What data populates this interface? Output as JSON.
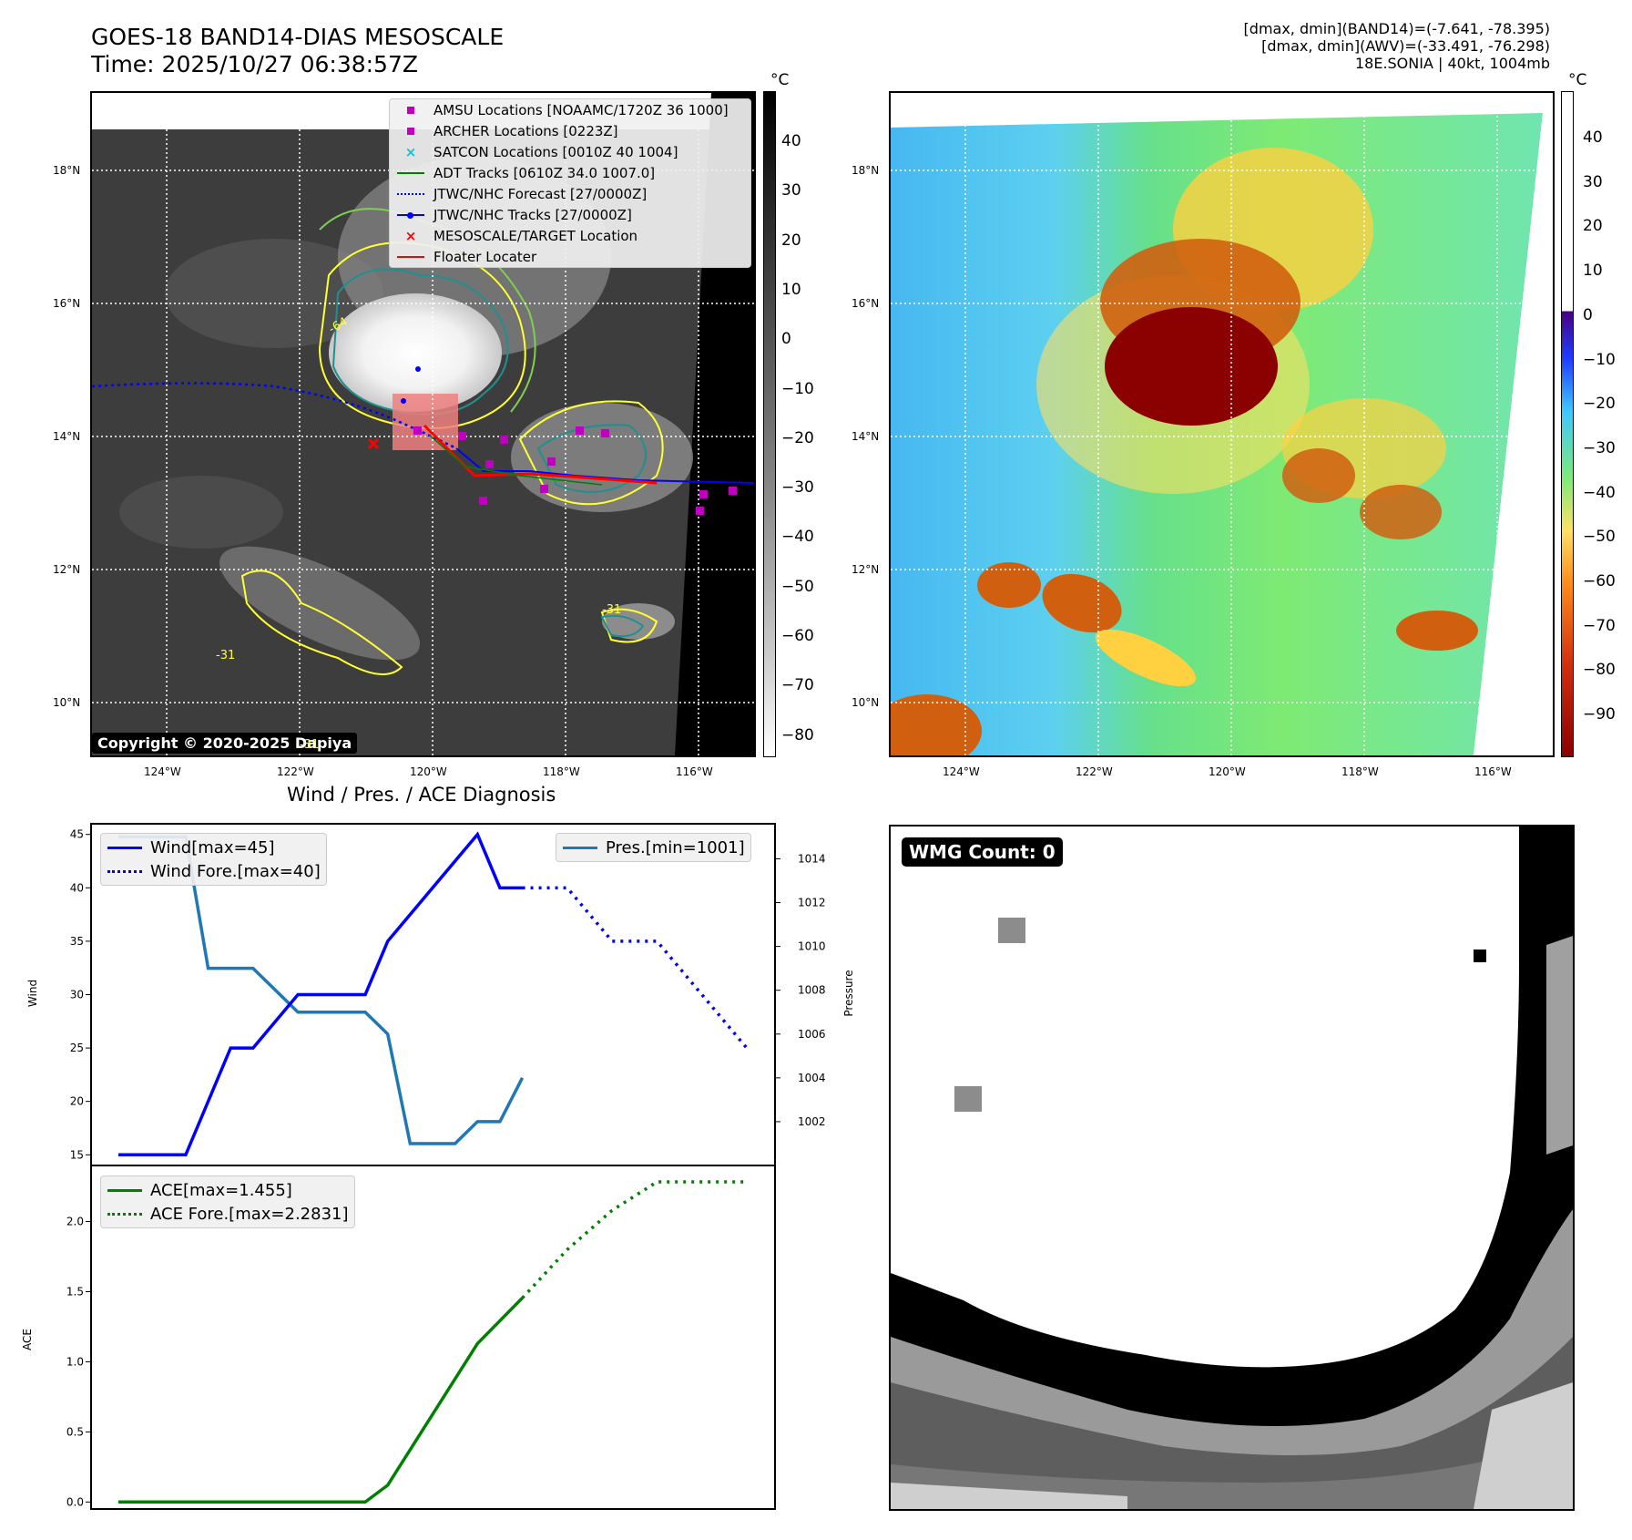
{
  "header": {
    "title_line1": "GOES-18 BAND14-DIAS MESOSCALE",
    "title_line2": "Time: 2025/10/27 06:38:57Z",
    "info_line1": "[dmax, dmin](BAND14)=(-7.641, -78.395)",
    "info_line2": "[dmax, dmin](AWV)=(-33.491, -76.298)",
    "info_line3": "18E.SONIA | 40kt, 1004mb"
  },
  "map_axes": {
    "lat_labels": [
      "18°N",
      "16°N",
      "14°N",
      "12°N",
      "10°N"
    ],
    "lon_labels": [
      "124°W",
      "122°W",
      "120°W",
      "118°W",
      "116°W"
    ]
  },
  "ir_panel": {
    "colorbar_unit": "°C",
    "colorbar_ticks": [
      "40",
      "30",
      "20",
      "10",
      "0",
      "−10",
      "−20",
      "−30",
      "−40",
      "−50",
      "−60",
      "−70",
      "−80"
    ],
    "legend": [
      {
        "label": "AMSU Locations [NOAAMC/1720Z 36 1000]",
        "symbol": "square",
        "color": "#bf00bf"
      },
      {
        "label": "ARCHER Locations [0223Z]",
        "symbol": "square",
        "color": "#bf00bf"
      },
      {
        "label": "SATCON Locations [0010Z 40 1004]",
        "symbol": "x",
        "color": "#17becf"
      },
      {
        "label": "ADT Tracks [0610Z 34.0 1007.0]",
        "symbol": "line",
        "color": "#008000"
      },
      {
        "label": "JTWC/NHC Forecast [27/0000Z]",
        "symbol": "dotted",
        "color": "#0000ff"
      },
      {
        "label": "JTWC/NHC Tracks [27/0000Z]",
        "symbol": "line-dot",
        "color": "#0000ff"
      },
      {
        "label": "MESOSCALE/TARGET Location",
        "symbol": "x",
        "color": "#ff0000"
      },
      {
        "label": "Floater Locater",
        "symbol": "line",
        "color": "#ff0000"
      }
    ],
    "copyright": "Copyright © 2020-2025 Dapiya",
    "contour_labels": [
      "-64",
      "-31",
      "-31",
      "-31"
    ]
  },
  "awv_panel": {
    "colorbar_unit": "°C",
    "colorbar_ticks": [
      "40",
      "30",
      "20",
      "10",
      "0",
      "−10",
      "−20",
      "−30",
      "−40",
      "−50",
      "−60",
      "−70",
      "−80",
      "−90"
    ]
  },
  "diag_panel": {
    "title": "Wind / Pres. / ACE Diagnosis",
    "wind_ylabel": "Wind",
    "pres_ylabel": "Pressure",
    "ace_ylabel": "ACE",
    "wind_legend": [
      "Wind[max=45]",
      "Wind Fore.[max=40]"
    ],
    "pres_legend": "Pres.[min=1001]",
    "ace_legend": [
      "ACE[max=1.455]",
      "ACE Fore.[max=2.2831]"
    ],
    "wind_ticks": [
      "45",
      "40",
      "35",
      "30",
      "25",
      "20",
      "15"
    ],
    "pres_ticks": [
      "1014",
      "1012",
      "1010",
      "1008",
      "1006",
      "1004",
      "1002"
    ],
    "ace_ticks": [
      "2.0",
      "1.5",
      "1.0",
      "0.5",
      "0.0"
    ]
  },
  "wmg_panel": {
    "badge": "WMG Count: 0"
  },
  "chart_data": [
    {
      "type": "line",
      "title": "Wind / Pres. / ACE Diagnosis",
      "ylabel": "Wind",
      "ylim": [
        14,
        46
      ],
      "series": [
        {
          "name": "Wind[max=45]",
          "x": [
            0,
            3,
            5,
            6,
            8,
            10,
            11,
            12,
            16,
            17,
            18
          ],
          "values": [
            15,
            15,
            25,
            25,
            30,
            30,
            30,
            35,
            45,
            40,
            40
          ]
        },
        {
          "name": "Wind Fore.[max=40]",
          "x": [
            18,
            20,
            22,
            24,
            26,
            28
          ],
          "values": [
            40,
            40,
            35,
            35,
            30,
            25
          ]
        }
      ]
    },
    {
      "type": "line",
      "ylabel": "Pressure",
      "ylim": [
        1000,
        1015.6
      ],
      "series": [
        {
          "name": "Pres.[min=1001]",
          "x": [
            0,
            3,
            4,
            6,
            8,
            10,
            11,
            12,
            13,
            15,
            16,
            17,
            18
          ],
          "values": [
            1015,
            1015,
            1009,
            1009,
            1007,
            1007,
            1007,
            1006,
            1001,
            1001,
            1002,
            1002,
            1004
          ]
        }
      ]
    },
    {
      "type": "line",
      "ylabel": "ACE",
      "ylim": [
        -0.05,
        2.4
      ],
      "series": [
        {
          "name": "ACE[max=1.455]",
          "x": [
            0,
            11,
            12,
            16,
            18
          ],
          "values": [
            0,
            0,
            0.12,
            1.13,
            1.455
          ]
        },
        {
          "name": "ACE Fore.[max=2.2831]",
          "x": [
            18,
            20,
            22,
            24,
            25,
            28
          ],
          "values": [
            1.455,
            1.8,
            2.08,
            2.2831,
            2.2831,
            2.2831
          ]
        }
      ]
    }
  ]
}
